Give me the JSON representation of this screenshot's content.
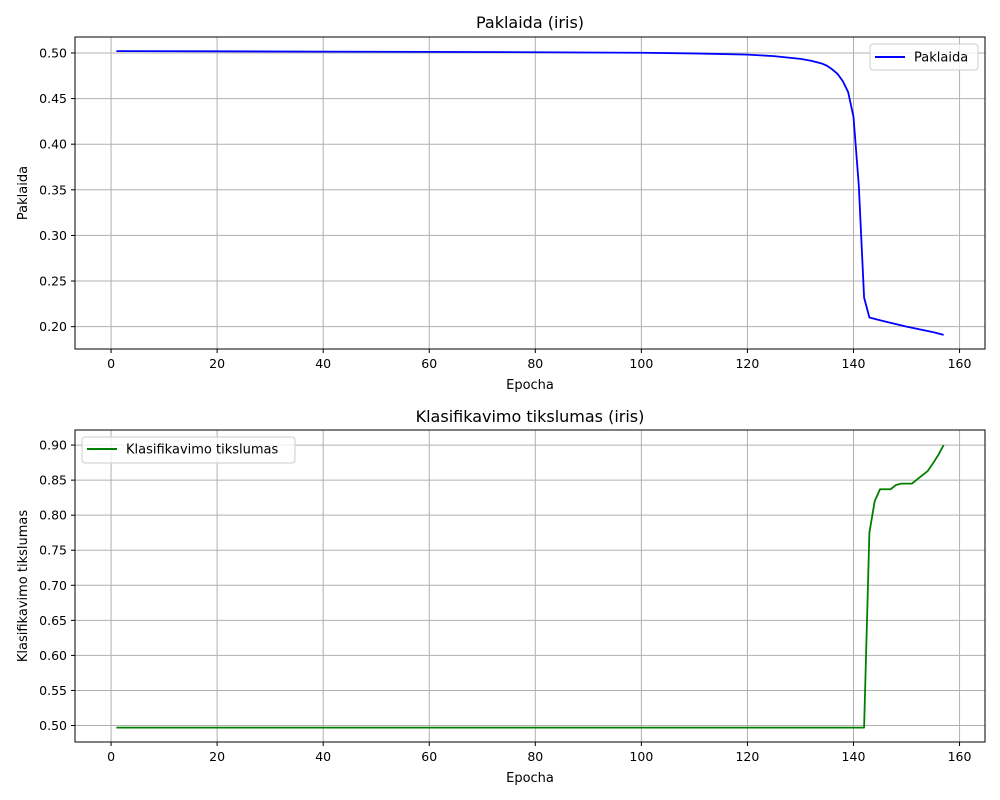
{
  "chart_data": [
    {
      "type": "line",
      "title": "Paklaida (iris)",
      "xlabel": "Epocha",
      "ylabel": "Paklaida",
      "xlim": [
        -6.8,
        164.8
      ],
      "ylim": [
        0.1755,
        0.5175
      ],
      "xticks": [
        0,
        20,
        40,
        60,
        80,
        100,
        120,
        140,
        160
      ],
      "yticks": [
        0.2,
        0.25,
        0.3,
        0.35,
        0.4,
        0.45,
        0.5
      ],
      "ytick_format": 2,
      "grid": true,
      "legend_position": "upper right",
      "series": [
        {
          "name": "Paklaida",
          "color": "#0000ff",
          "x": [
            1,
            20,
            40,
            60,
            80,
            100,
            110,
            120,
            125,
            130,
            132,
            134,
            135,
            136,
            137,
            138,
            139,
            140,
            141,
            142,
            143,
            145,
            150,
            155,
            157
          ],
          "y": [
            0.502,
            0.5018,
            0.5015,
            0.5012,
            0.5008,
            0.5002,
            0.4995,
            0.4982,
            0.4965,
            0.4935,
            0.4915,
            0.4885,
            0.486,
            0.482,
            0.477,
            0.469,
            0.457,
            0.43,
            0.355,
            0.232,
            0.21,
            0.207,
            0.2,
            0.194,
            0.191
          ]
        }
      ]
    },
    {
      "type": "line",
      "title": "Klasifikavimo tikslumas (iris)",
      "xlabel": "Epocha",
      "ylabel": "Klasifikavimo tikslumas",
      "xlim": [
        -6.8,
        164.8
      ],
      "ylim": [
        0.4765,
        0.9215
      ],
      "xticks": [
        0,
        20,
        40,
        60,
        80,
        100,
        120,
        140,
        160
      ],
      "yticks": [
        0.5,
        0.55,
        0.6,
        0.65,
        0.7,
        0.75,
        0.8,
        0.85,
        0.9
      ],
      "ytick_format": 2,
      "grid": true,
      "legend_position": "upper left",
      "series": [
        {
          "name": "Klasifikavimo tikslumas",
          "color": "#008000",
          "x": [
            1,
            20,
            40,
            60,
            80,
            100,
            120,
            140,
            142,
            143,
            144,
            145,
            146,
            147,
            148,
            149,
            150,
            151,
            152,
            153,
            154,
            155,
            156,
            157
          ],
          "y": [
            0.497,
            0.497,
            0.497,
            0.497,
            0.497,
            0.497,
            0.497,
            0.497,
            0.497,
            0.775,
            0.82,
            0.837,
            0.837,
            0.837,
            0.843,
            0.845,
            0.845,
            0.845,
            0.851,
            0.857,
            0.863,
            0.874,
            0.886,
            0.9
          ]
        }
      ]
    }
  ]
}
